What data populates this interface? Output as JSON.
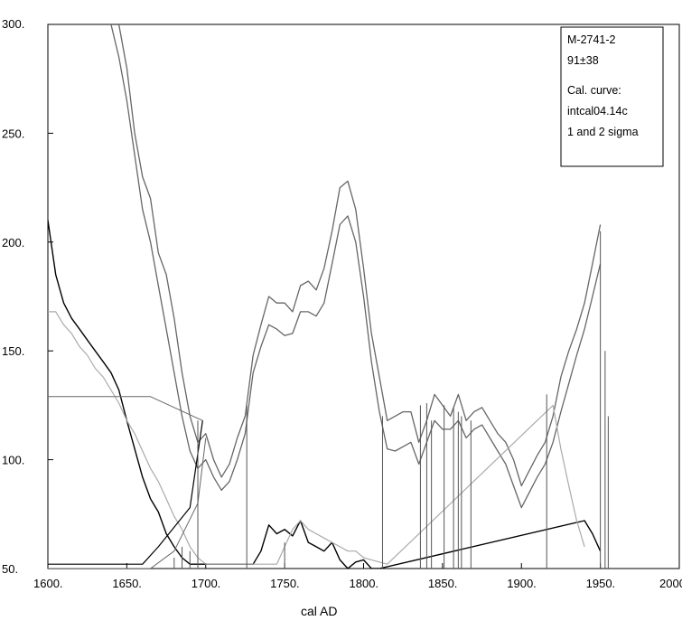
{
  "chart_data": {
    "type": "line",
    "xlabel": "cal AD",
    "ylabel": "",
    "xlim": [
      1600,
      2000
    ],
    "ylim": [
      50,
      300
    ],
    "xticks": [
      "1600.",
      "1650.",
      "1700.",
      "1750.",
      "1800.",
      "1850.",
      "1900.",
      "1950.",
      "2000."
    ],
    "yticks": [
      "300.",
      "250.",
      "200.",
      "150.",
      "100.",
      "50."
    ],
    "legend": {
      "position": "top-right",
      "lines": [
        "M-2741-2",
        "91±38",
        "Cal. curve:",
        "intcal04.14c",
        "1 and 2 sigma"
      ]
    },
    "grid": false,
    "colors": {
      "curve": "#666666",
      "sigma1": "#000000",
      "sigma2": "#aaaaaa",
      "drop": "#555555",
      "frame": "#000000"
    },
    "series": [
      {
        "role": "cal-curve-upper",
        "x": [
          1645,
          1650,
          1655,
          1660,
          1665,
          1670,
          1675,
          1680,
          1685,
          1690,
          1695,
          1700,
          1705,
          1710,
          1715,
          1720,
          1725,
          1730,
          1735,
          1740,
          1745,
          1750,
          1755,
          1760,
          1765,
          1770,
          1775,
          1780,
          1785,
          1790,
          1795,
          1800,
          1805,
          1810,
          1815,
          1820,
          1825,
          1830,
          1835,
          1840,
          1845,
          1850,
          1855,
          1860,
          1865,
          1870,
          1875,
          1880,
          1885,
          1890,
          1895,
          1900,
          1905,
          1910,
          1915,
          1920,
          1925,
          1930,
          1935,
          1940,
          1945,
          1950
        ],
        "y": [
          300,
          280,
          250,
          230,
          220,
          195,
          185,
          165,
          140,
          120,
          108,
          112,
          100,
          92,
          98,
          110,
          120,
          148,
          162,
          175,
          172,
          172,
          168,
          180,
          182,
          178,
          188,
          205,
          225,
          228,
          215,
          188,
          158,
          138,
          118,
          120,
          122,
          122,
          108,
          118,
          130,
          125,
          120,
          130,
          118,
          122,
          124,
          118,
          112,
          108,
          100,
          88,
          95,
          102,
          108,
          120,
          138,
          150,
          160,
          172,
          190,
          208
        ]
      },
      {
        "role": "cal-curve-lower",
        "x": [
          1640,
          1645,
          1650,
          1655,
          1660,
          1665,
          1670,
          1675,
          1680,
          1685,
          1690,
          1695,
          1700,
          1705,
          1710,
          1715,
          1720,
          1725,
          1730,
          1735,
          1740,
          1745,
          1750,
          1755,
          1760,
          1765,
          1770,
          1775,
          1780,
          1785,
          1790,
          1795,
          1800,
          1805,
          1810,
          1815,
          1820,
          1825,
          1830,
          1835,
          1840,
          1845,
          1850,
          1855,
          1860,
          1865,
          1870,
          1875,
          1880,
          1885,
          1890,
          1895,
          1900,
          1905,
          1910,
          1915,
          1920,
          1925,
          1930,
          1935,
          1940,
          1945,
          1950
        ],
        "y": [
          300,
          285,
          265,
          240,
          215,
          200,
          180,
          160,
          140,
          120,
          104,
          96,
          100,
          92,
          86,
          90,
          100,
          112,
          140,
          152,
          162,
          160,
          157,
          158,
          168,
          168,
          166,
          172,
          190,
          208,
          212,
          200,
          175,
          145,
          122,
          105,
          104,
          106,
          108,
          98,
          108,
          118,
          114,
          114,
          118,
          110,
          114,
          116,
          110,
          104,
          98,
          88,
          78,
          85,
          92,
          98,
          108,
          122,
          135,
          148,
          160,
          175,
          190
        ]
      },
      {
        "role": "prob-dist-1sigma",
        "x": [
          1600,
          1605,
          1610,
          1615,
          1620,
          1625,
          1630,
          1635,
          1640,
          1645,
          1650,
          1655,
          1660,
          1665,
          1670,
          1675,
          1680,
          1685,
          1690,
          1695,
          1700,
          1705,
          1710,
          1715,
          1720,
          1725,
          1730,
          1735,
          1740,
          1745,
          1750,
          1755,
          1760,
          1765,
          1770,
          1775,
          1780,
          1785,
          1790,
          1795,
          1800,
          1805,
          1810,
          1940,
          1945,
          1950
        ],
        "y": [
          210,
          185,
          172,
          165,
          160,
          155,
          150,
          145,
          140,
          132,
          118,
          105,
          92,
          82,
          76,
          66,
          60,
          55,
          52,
          52,
          52,
          52,
          52,
          52,
          52,
          52,
          52,
          58,
          70,
          66,
          68,
          65,
          72,
          62,
          60,
          58,
          62,
          54,
          50,
          53,
          54,
          50,
          50,
          72,
          66,
          58
        ]
      },
      {
        "role": "prob-dist-2sigma",
        "x": [
          1600,
          1605,
          1610,
          1615,
          1620,
          1625,
          1630,
          1635,
          1640,
          1645,
          1650,
          1655,
          1660,
          1665,
          1670,
          1675,
          1680,
          1685,
          1690,
          1695,
          1700,
          1705,
          1710,
          1715,
          1720,
          1725,
          1730,
          1735,
          1740,
          1745,
          1750,
          1755,
          1760,
          1765,
          1770,
          1775,
          1780,
          1785,
          1790,
          1795,
          1800,
          1805,
          1810,
          1815,
          1920,
          1925,
          1930,
          1935,
          1940
        ],
        "y": [
          168,
          168,
          162,
          158,
          152,
          148,
          142,
          138,
          132,
          126,
          118,
          112,
          104,
          96,
          90,
          82,
          74,
          68,
          60,
          55,
          52,
          52,
          52,
          52,
          52,
          52,
          52,
          52,
          52,
          52,
          60,
          68,
          72,
          68,
          66,
          64,
          62,
          60,
          58,
          58,
          55,
          54,
          53,
          52,
          125,
          105,
          88,
          72,
          60
        ]
      },
      {
        "role": "cal-y-marker",
        "x": [
          1600,
          1665,
          1698
        ],
        "y": [
          129,
          129,
          118
        ]
      },
      {
        "role": "cal-y-1sigma-edge",
        "x": [
          1600,
          1660,
          1670,
          1690,
          1698
        ],
        "y": [
          52,
          52,
          60,
          78,
          118
        ]
      },
      {
        "role": "cal-y-2sigma-edge",
        "x": [
          1600,
          1665,
          1680,
          1695,
          1700
        ],
        "y": [
          50,
          50,
          58,
          80,
          110
        ]
      }
    ],
    "drops": [
      {
        "x": 1680,
        "y": 55
      },
      {
        "x": 1685,
        "y": 60
      },
      {
        "x": 1690,
        "y": 58
      },
      {
        "x": 1695,
        "y": 118
      },
      {
        "x": 1726,
        "y": 125
      },
      {
        "x": 1750,
        "y": 62
      },
      {
        "x": 1812,
        "y": 120
      },
      {
        "x": 1836,
        "y": 125
      },
      {
        "x": 1840,
        "y": 126
      },
      {
        "x": 1843,
        "y": 118
      },
      {
        "x": 1851,
        "y": 125
      },
      {
        "x": 1857,
        "y": 124
      },
      {
        "x": 1860,
        "y": 122
      },
      {
        "x": 1862,
        "y": 120
      },
      {
        "x": 1868,
        "y": 118
      },
      {
        "x": 1916,
        "y": 130
      },
      {
        "x": 1950,
        "y": 205
      },
      {
        "x": 1953,
        "y": 150
      },
      {
        "x": 1955,
        "y": 120
      }
    ]
  }
}
